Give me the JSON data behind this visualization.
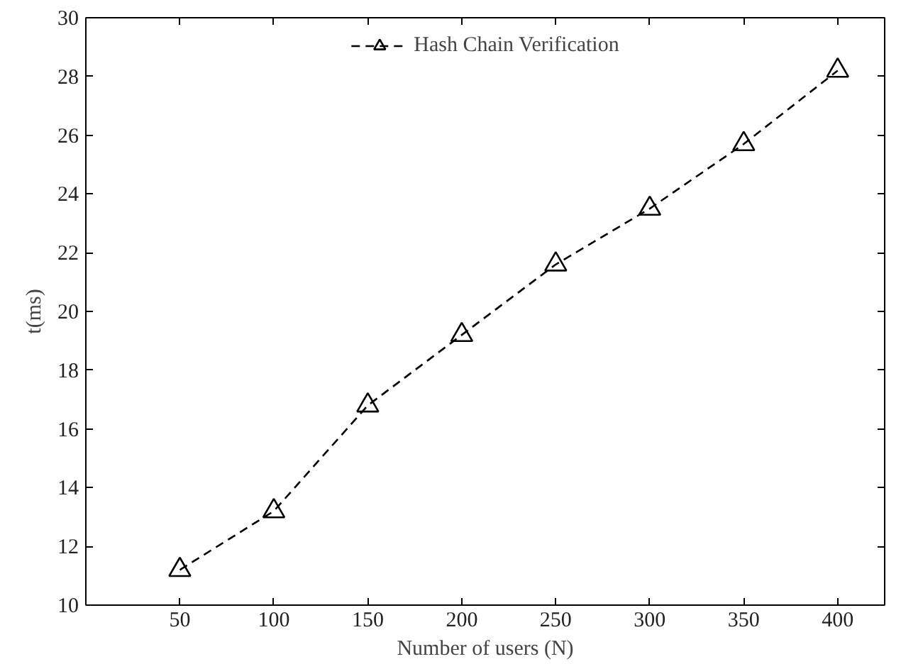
{
  "chart_data": {
    "type": "line",
    "xlabel": "Number of users (N)",
    "ylabel": "t(ms)",
    "x": [
      50,
      100,
      150,
      200,
      250,
      300,
      350,
      400
    ],
    "series": [
      {
        "name": "Hash Chain Verification",
        "color": "#000000",
        "values": [
          11.2,
          13.2,
          16.8,
          19.2,
          21.6,
          23.5,
          25.7,
          28.2
        ]
      }
    ],
    "xlim": [
      0,
      425
    ],
    "ylim": [
      10,
      30
    ],
    "xticks": [
      50,
      100,
      150,
      200,
      250,
      300,
      350,
      400
    ],
    "yticks": [
      10,
      12,
      14,
      16,
      18,
      20,
      22,
      24,
      26,
      28,
      30
    ],
    "marker": "triangle",
    "line_style": "dashed",
    "legend": "top",
    "grid": false
  }
}
